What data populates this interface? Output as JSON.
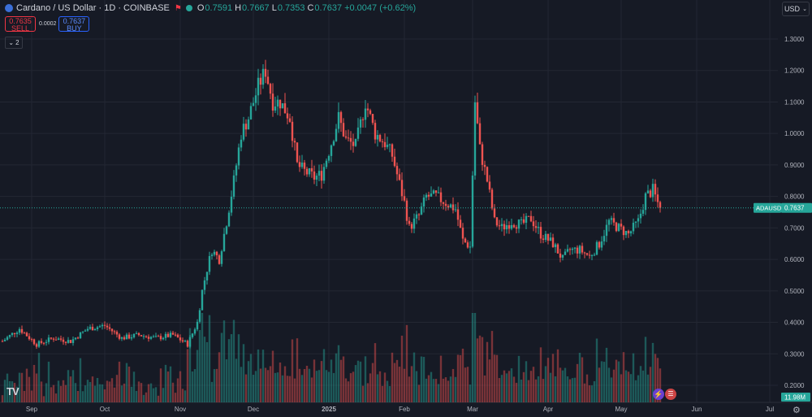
{
  "header": {
    "symbol": "Cardano / US Dollar · 1D · COINBASE",
    "o_label": "O",
    "o": "0.7591",
    "h_label": "H",
    "h": "0.7667",
    "l_label": "L",
    "l": "0.7353",
    "c_label": "C",
    "c": "0.7637",
    "change": "+0.0047 (+0.62%)"
  },
  "trade": {
    "sell_price": "0.7635",
    "sell_label": "SELL",
    "spread": "0.0002",
    "buy_price": "0.7637",
    "buy_label": "BUY"
  },
  "indicators_count": "2",
  "currency": "USD",
  "tag": {
    "label": "ADAUSD",
    "price": "0.7637"
  },
  "volume_tag": "11.98M",
  "colors": {
    "up": "#26a69a",
    "down": "#ef5350",
    "bg": "#161a25",
    "grid": "#232733"
  },
  "chart_data": {
    "type": "candlestick",
    "y_ticks": [
      1.3,
      1.2,
      1.1,
      1.0,
      0.9,
      0.8,
      0.7,
      0.6,
      0.5,
      0.4,
      0.3,
      0.2
    ],
    "y_tick_labels": [
      "1.3000",
      "1.2000",
      "1.1000",
      "1.0000",
      "0.9000",
      "0.8000",
      "0.7000",
      "0.6000",
      "0.5000",
      "0.4000",
      "0.3000",
      "0.2000"
    ],
    "x_labels": [
      "Sep",
      "Oct",
      "Nov",
      "Dec",
      "2025",
      "Feb",
      "Mar",
      "Apr",
      "May",
      "Jun",
      "Jul"
    ],
    "x_label_dates": [
      "2024-09-01",
      "2024-10-01",
      "2024-11-01",
      "2024-12-01",
      "2025-01-01",
      "2025-02-01",
      "2025-03-01",
      "2025-04-01",
      "2025-05-01",
      "2025-06-01",
      "2025-07-01"
    ],
    "start_date": "2024-08-20",
    "current_price": 0.7637,
    "close_anchors": [
      [
        "2024-08-20",
        0.34
      ],
      [
        "2024-08-27",
        0.38
      ],
      [
        "2024-09-03",
        0.33
      ],
      [
        "2024-09-10",
        0.35
      ],
      [
        "2024-09-17",
        0.34
      ],
      [
        "2024-09-24",
        0.38
      ],
      [
        "2024-10-01",
        0.39
      ],
      [
        "2024-10-08",
        0.35
      ],
      [
        "2024-10-15",
        0.36
      ],
      [
        "2024-10-22",
        0.35
      ],
      [
        "2024-10-29",
        0.36
      ],
      [
        "2024-11-04",
        0.33
      ],
      [
        "2024-11-08",
        0.4
      ],
      [
        "2024-11-10",
        0.5
      ],
      [
        "2024-11-12",
        0.57
      ],
      [
        "2024-11-14",
        0.63
      ],
      [
        "2024-11-17",
        0.6
      ],
      [
        "2024-11-20",
        0.72
      ],
      [
        "2024-11-23",
        0.85
      ],
      [
        "2024-11-26",
        1.0
      ],
      [
        "2024-11-29",
        1.05
      ],
      [
        "2024-12-03",
        1.15
      ],
      [
        "2024-12-06",
        1.2
      ],
      [
        "2024-12-09",
        1.1
      ],
      [
        "2024-12-12",
        1.1
      ],
      [
        "2024-12-16",
        1.05
      ],
      [
        "2024-12-19",
        0.9
      ],
      [
        "2024-12-22",
        0.88
      ],
      [
        "2024-12-26",
        0.86
      ],
      [
        "2024-12-29",
        0.87
      ],
      [
        "2025-01-02",
        0.97
      ],
      [
        "2025-01-05",
        1.05
      ],
      [
        "2025-01-08",
        0.98
      ],
      [
        "2025-01-12",
        0.96
      ],
      [
        "2025-01-16",
        1.1
      ],
      [
        "2025-01-20",
        1.0
      ],
      [
        "2025-01-24",
        0.97
      ],
      [
        "2025-01-27",
        0.93
      ],
      [
        "2025-02-01",
        0.78
      ],
      [
        "2025-02-03",
        0.7
      ],
      [
        "2025-02-07",
        0.74
      ],
      [
        "2025-02-10",
        0.8
      ],
      [
        "2025-02-14",
        0.8
      ],
      [
        "2025-02-18",
        0.78
      ],
      [
        "2025-02-22",
        0.76
      ],
      [
        "2025-02-25",
        0.66
      ],
      [
        "2025-02-28",
        0.64
      ],
      [
        "2025-03-02",
        1.1
      ],
      [
        "2025-03-04",
        0.95
      ],
      [
        "2025-03-07",
        0.85
      ],
      [
        "2025-03-10",
        0.72
      ],
      [
        "2025-03-13",
        0.7
      ],
      [
        "2025-03-17",
        0.72
      ],
      [
        "2025-03-21",
        0.71
      ],
      [
        "2025-03-25",
        0.73
      ],
      [
        "2025-03-29",
        0.68
      ],
      [
        "2025-04-03",
        0.65
      ],
      [
        "2025-04-07",
        0.6
      ],
      [
        "2025-04-10",
        0.63
      ],
      [
        "2025-04-14",
        0.63
      ],
      [
        "2025-04-18",
        0.61
      ],
      [
        "2025-04-22",
        0.65
      ],
      [
        "2025-04-26",
        0.72
      ],
      [
        "2025-04-30",
        0.7
      ],
      [
        "2025-05-04",
        0.68
      ],
      [
        "2025-05-08",
        0.72
      ],
      [
        "2025-05-11",
        0.8
      ],
      [
        "2025-05-14",
        0.82
      ],
      [
        "2025-05-17",
        0.76
      ]
    ]
  }
}
